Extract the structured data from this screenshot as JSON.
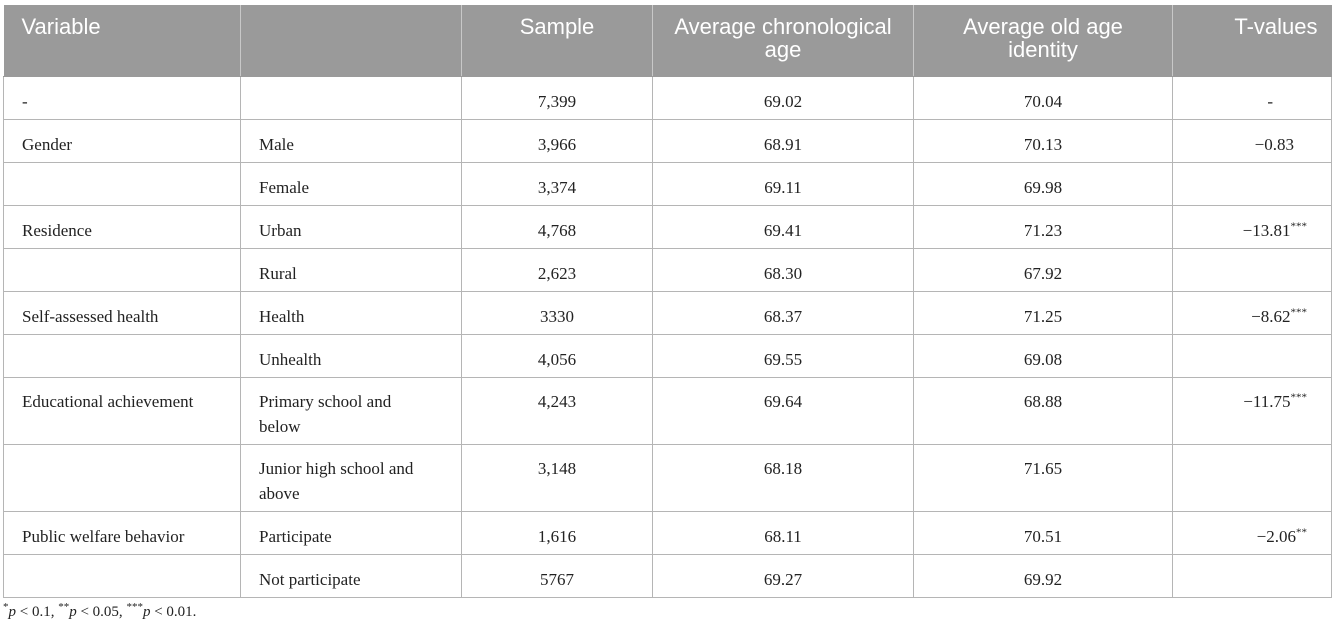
{
  "table": {
    "headers": [
      "Variable",
      "",
      "Sample",
      "Average chronological age",
      "Average old age identity",
      "T-values"
    ],
    "rows": [
      {
        "variable": "-",
        "category": "",
        "sample": "7,399",
        "avg_age": "69.02",
        "avg_identity": "70.04",
        "t_value": "-",
        "t_sig": ""
      },
      {
        "variable": "Gender",
        "category": "Male",
        "sample": "3,966",
        "avg_age": "68.91",
        "avg_identity": "70.13",
        "t_value": "−0.83",
        "t_sig": ""
      },
      {
        "variable": "",
        "category": "Female",
        "sample": "3,374",
        "avg_age": "69.11",
        "avg_identity": "69.98",
        "t_value": "",
        "t_sig": ""
      },
      {
        "variable": "Residence",
        "category": "Urban",
        "sample": "4,768",
        "avg_age": "69.41",
        "avg_identity": "71.23",
        "t_value": "−13.81",
        "t_sig": "***"
      },
      {
        "variable": "",
        "category": "Rural",
        "sample": "2,623",
        "avg_age": "68.30",
        "avg_identity": "67.92",
        "t_value": "",
        "t_sig": ""
      },
      {
        "variable": "Self-assessed health",
        "category": "Health",
        "sample": "3330",
        "avg_age": "68.37",
        "avg_identity": "71.25",
        "t_value": "−8.62",
        "t_sig": "***"
      },
      {
        "variable": "",
        "category": "Unhealth",
        "sample": "4,056",
        "avg_age": "69.55",
        "avg_identity": "69.08",
        "t_value": "",
        "t_sig": ""
      },
      {
        "variable": "Educational achievement",
        "category": "Primary school and below",
        "sample": "4,243",
        "avg_age": "69.64",
        "avg_identity": "68.88",
        "t_value": "−11.75",
        "t_sig": "***"
      },
      {
        "variable": "",
        "category": "Junior high school and above",
        "sample": "3,148",
        "avg_age": "68.18",
        "avg_identity": "71.65",
        "t_value": "",
        "t_sig": ""
      },
      {
        "variable": "Public welfare behavior",
        "category": "Participate",
        "sample": "1,616",
        "avg_age": "68.11",
        "avg_identity": "70.51",
        "t_value": "−2.06",
        "t_sig": "**"
      },
      {
        "variable": "",
        "category": "Not participate",
        "sample": "5767",
        "avg_age": "69.27",
        "avg_identity": "69.92",
        "t_value": "",
        "t_sig": ""
      }
    ]
  },
  "footnote": {
    "s1": "*",
    "p1": "p",
    "t1": " < 0.1, ",
    "s2": "**",
    "p2": "p",
    "t2": " < 0.05, ",
    "s3": "***",
    "p3": "p",
    "t3": " < 0.01."
  }
}
